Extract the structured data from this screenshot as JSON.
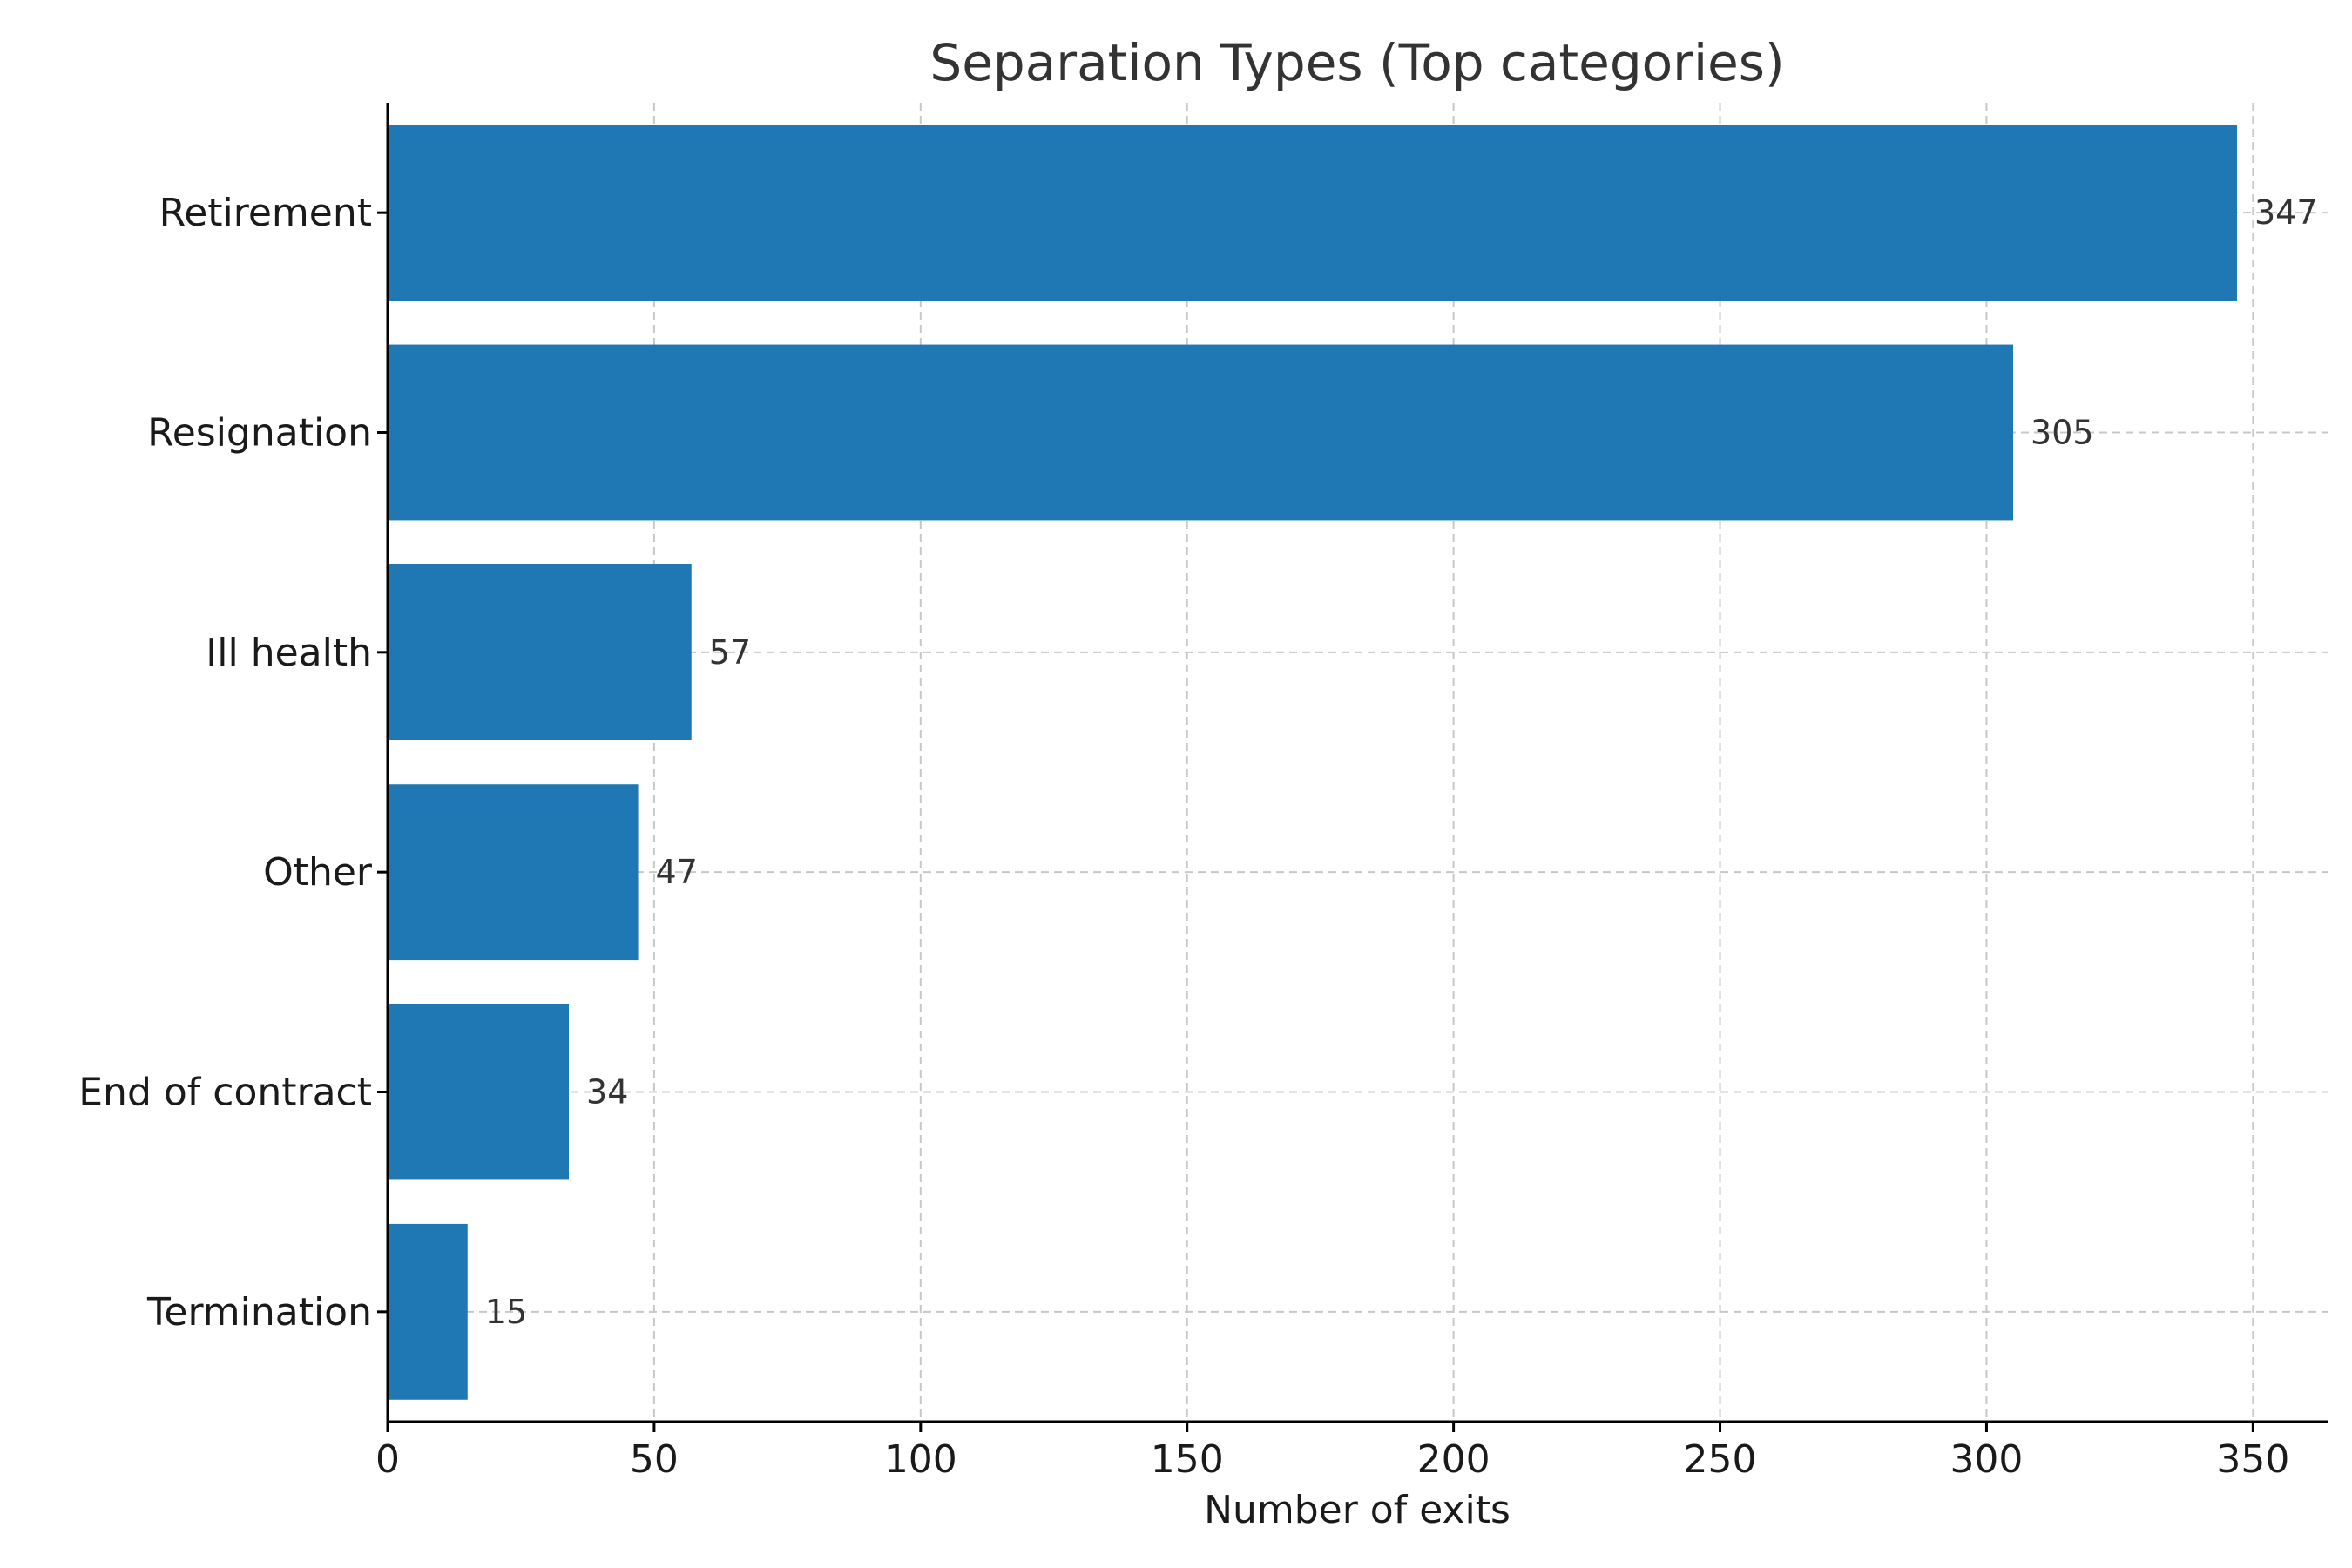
{
  "chart_data": {
    "type": "bar",
    "orientation": "horizontal",
    "title": "Separation Types (Top categories)",
    "xlabel": "Number of exits",
    "ylabel": "",
    "categories": [
      "Retirement",
      "Resignation",
      "Ill health",
      "Other",
      "End of contract",
      "Termination"
    ],
    "values": [
      347,
      305,
      57,
      47,
      34,
      15
    ],
    "value_labels": [
      "347",
      "305",
      "57",
      "47",
      "34",
      "15"
    ],
    "xlim": [
      0,
      364
    ],
    "xticks": [
      0,
      50,
      100,
      150,
      200,
      250,
      300,
      350
    ],
    "xtick_labels": [
      "0",
      "50",
      "100",
      "150",
      "200",
      "250",
      "300",
      "350"
    ],
    "grid": true,
    "bar_color": "#1f77b4"
  }
}
